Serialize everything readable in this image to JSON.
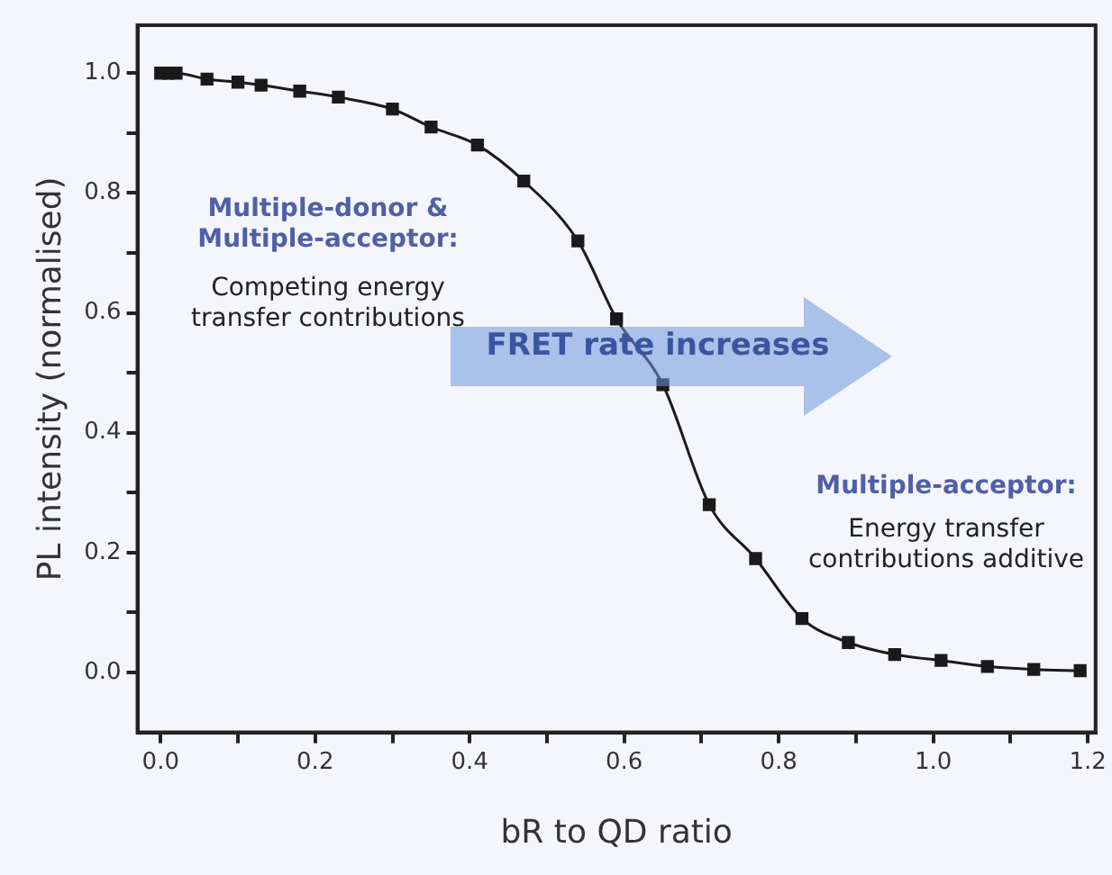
{
  "chart_data": {
    "type": "line",
    "xlabel": "bR to QD ratio",
    "ylabel": "PL intensity (normalised)",
    "x": [
      0.0,
      0.01,
      0.02,
      0.06,
      0.1,
      0.13,
      0.18,
      0.23,
      0.3,
      0.35,
      0.41,
      0.47,
      0.54,
      0.59,
      0.65,
      0.71,
      0.77,
      0.83,
      0.89,
      0.95,
      1.01,
      1.07,
      1.13,
      1.19
    ],
    "series": [
      {
        "color": "#1a1a1a",
        "values": [
          1.0,
          1.0,
          1.0,
          0.99,
          0.985,
          0.98,
          0.97,
          0.96,
          0.94,
          0.91,
          0.88,
          0.82,
          0.72,
          0.59,
          0.48,
          0.28,
          0.19,
          0.09,
          0.05,
          0.03,
          0.02,
          0.01,
          0.005,
          0.003
        ]
      }
    ],
    "xlim": [
      -0.03,
      1.21
    ],
    "ylim": [
      -0.1,
      1.08
    ],
    "xticks": [
      {
        "value": 0,
        "label": "0.0"
      },
      {
        "value": 0.1,
        "label": null
      },
      0.2,
      {
        "value": 0.3,
        "label": null
      },
      0.4,
      {
        "value": 0.5,
        "label": null
      },
      0.6,
      {
        "value": 0.7,
        "label": null
      },
      0.8,
      {
        "value": 0.9,
        "label": null
      },
      {
        "value": 1,
        "label": "1.0"
      },
      {
        "value": 1.1,
        "label": null
      },
      1.2
    ],
    "yticks": [
      {
        "value": 0,
        "label": "0.0"
      },
      {
        "value": 0.1,
        "label": null
      },
      0.2,
      {
        "value": 0.3,
        "label": null
      },
      0.4,
      {
        "value": 0.5,
        "label": null
      },
      0.6,
      {
        "value": 0.7,
        "label": null
      },
      0.8,
      {
        "value": 0.9,
        "label": null
      },
      {
        "value": 1,
        "label": "1.0"
      }
    ],
    "grid": false,
    "legend": false,
    "marker": "square",
    "line_style": "solid",
    "annotations": [
      "Multiple-donor & Multiple-acceptor:",
      "Competing energy transfer contributions",
      "FRET rate increases",
      "Multiple-acceptor:",
      "Energy transfer contributions additive"
    ]
  }
}
